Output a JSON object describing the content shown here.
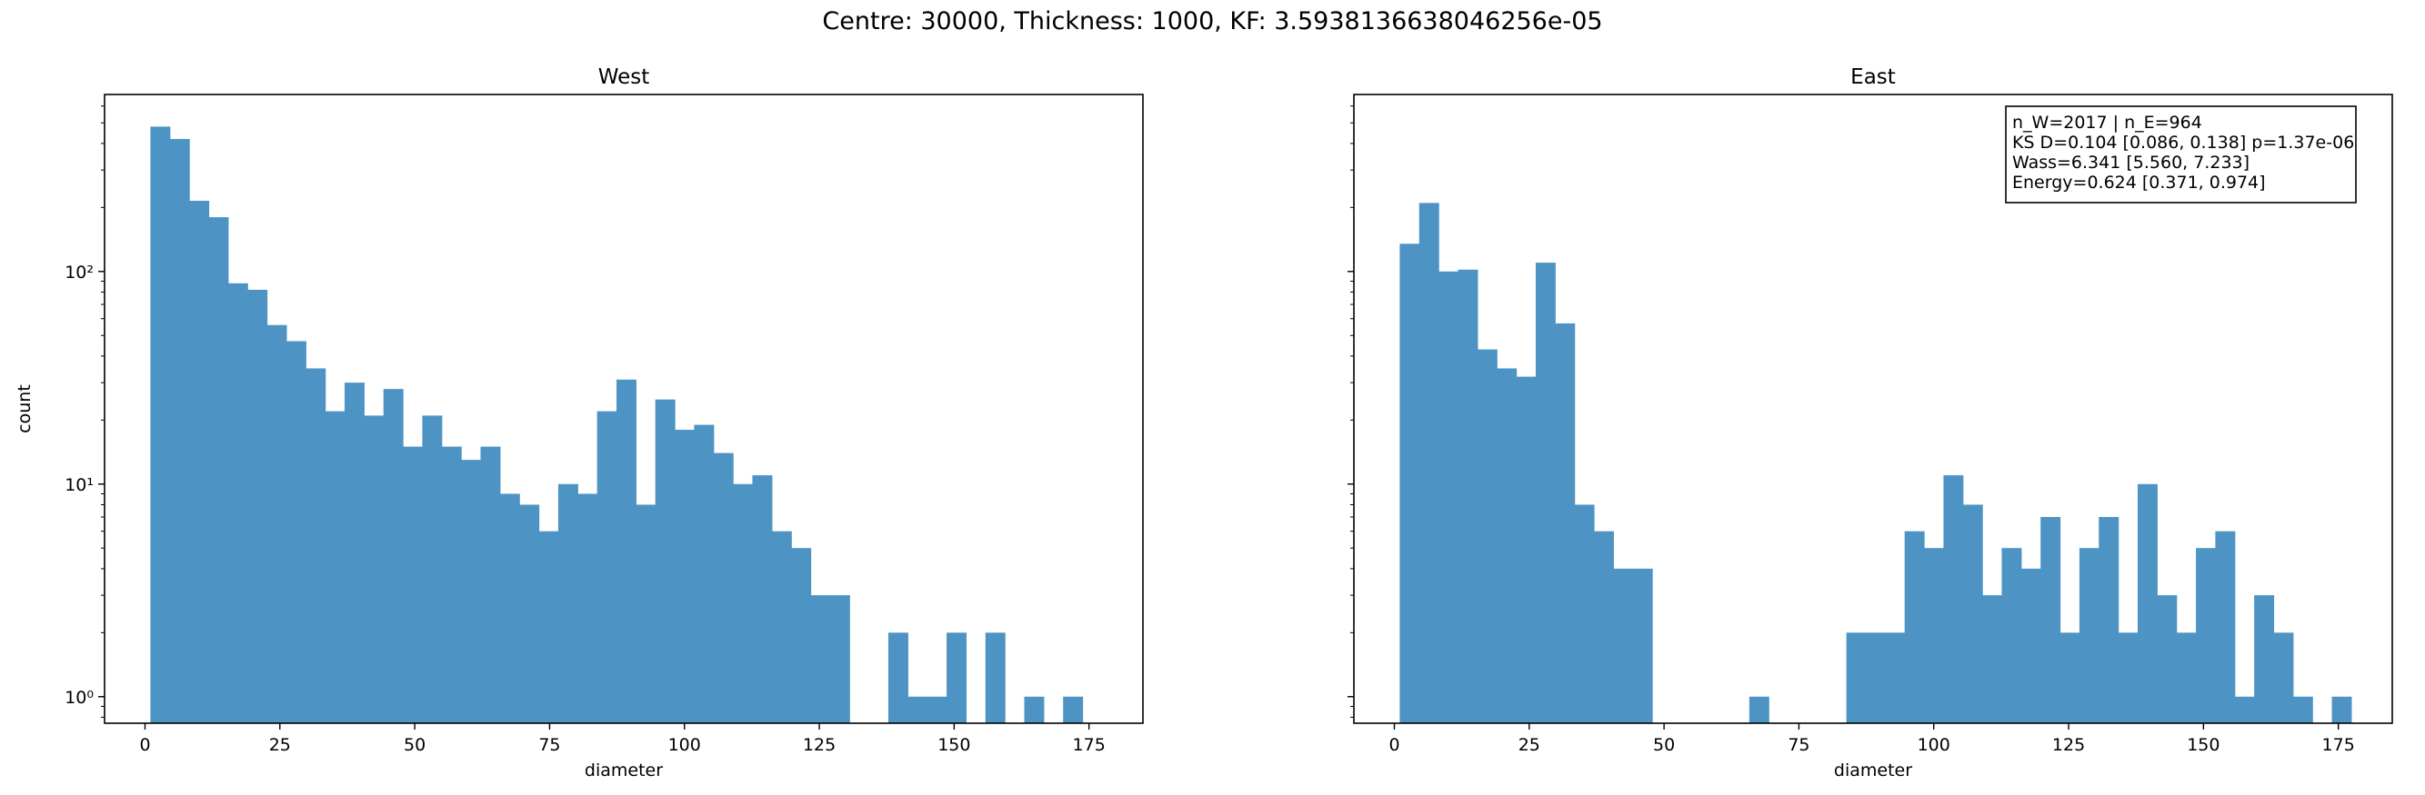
{
  "suptitle": "Centre: 30000, Thickness: 1000, KF: 3.5938136638046256e-05",
  "bar_color": "#4d94c4",
  "chart_data": [
    {
      "type": "bar",
      "title": "West",
      "xlabel": "diameter",
      "ylabel": "count",
      "yscale": "log",
      "xlim": [
        -7.5,
        185
      ],
      "ylim": [
        0.75,
        680
      ],
      "xticks": [
        0,
        25,
        50,
        75,
        100,
        125,
        150,
        175
      ],
      "xtick_labels": [
        "0",
        "25",
        "50",
        "75",
        "100",
        "125",
        "150",
        "175"
      ],
      "yticks": [
        1,
        10,
        100
      ],
      "ytick_labels": [
        "10⁰",
        "10¹",
        "10²"
      ],
      "bin_start": 1,
      "bin_width": 3.6,
      "values": [
        480,
        420,
        215,
        180,
        88,
        82,
        56,
        47,
        35,
        22,
        30,
        21,
        28,
        15,
        21,
        15,
        13,
        15,
        9,
        8,
        6,
        10,
        9,
        22,
        31,
        8,
        25,
        18,
        19,
        14,
        10,
        11,
        6,
        5,
        3,
        3,
        0,
        0,
        2,
        1,
        1,
        2,
        0,
        2,
        0,
        1,
        0,
        1
      ]
    },
    {
      "type": "bar",
      "title": "East",
      "xlabel": "diameter",
      "ylabel": "",
      "yscale": "log",
      "xlim": [
        -7.5,
        185
      ],
      "ylim": [
        0.75,
        680
      ],
      "xticks": [
        0,
        25,
        50,
        75,
        100,
        125,
        150,
        175
      ],
      "xtick_labels": [
        "0",
        "25",
        "50",
        "75",
        "100",
        "125",
        "150",
        "175"
      ],
      "yticks": [
        1,
        10,
        100
      ],
      "ytick_labels": [
        "",
        "",
        ""
      ],
      "bin_start": 1,
      "bin_width": 3.6,
      "values": [
        135,
        210,
        100,
        102,
        43,
        35,
        32,
        110,
        57,
        8,
        6,
        4,
        4,
        0,
        0,
        0,
        0,
        0,
        1,
        0,
        0,
        0,
        0,
        2,
        2,
        2,
        6,
        5,
        11,
        8,
        3,
        5,
        4,
        7,
        2,
        5,
        7,
        2,
        10,
        3,
        2,
        5,
        6,
        1,
        3,
        2,
        1,
        0,
        1
      ],
      "annotation": [
        "n_W=2017 | n_E=964",
        "KS D=0.104 [0.086, 0.138]  p=1.37e-06",
        "Wass=6.341 [5.560, 7.233]",
        "Energy=0.624 [0.371, 0.974]"
      ]
    }
  ]
}
